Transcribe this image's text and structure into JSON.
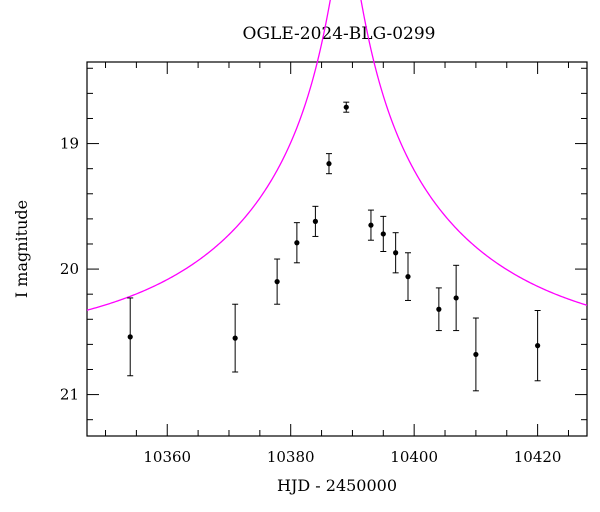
{
  "chart_data": {
    "type": "scatter",
    "title": "OGLE-2024-BLG-0299",
    "xlabel": "HJD - 2450000",
    "ylabel": "I magnitude",
    "xlim": [
      10347,
      10428
    ],
    "ylim": [
      21.33,
      18.35
    ],
    "y_inverted": true,
    "x_ticks": [
      10360,
      10380,
      10400,
      10420
    ],
    "y_ticks": [
      19,
      20,
      21
    ],
    "x_tick_labels": [
      "10360",
      "10380",
      "10400",
      "10420"
    ],
    "y_tick_labels": [
      "19",
      "20",
      "21"
    ],
    "grid": false,
    "legend": "none",
    "colors": {
      "model": "#ff00ff",
      "points": "#000000"
    },
    "series": [
      {
        "kind": "points_with_errorbars",
        "points": [
          {
            "x": 10354.0,
            "y": 20.54,
            "err": 0.31
          },
          {
            "x": 10371.0,
            "y": 20.55,
            "err": 0.27
          },
          {
            "x": 10377.8,
            "y": 20.1,
            "err": 0.18
          },
          {
            "x": 10381.0,
            "y": 19.79,
            "err": 0.16
          },
          {
            "x": 10384.0,
            "y": 19.62,
            "err": 0.12
          },
          {
            "x": 10386.2,
            "y": 19.16,
            "err": 0.08
          },
          {
            "x": 10389.0,
            "y": 18.71,
            "err": 0.04
          },
          {
            "x": 10393.0,
            "y": 19.65,
            "err": 0.12
          },
          {
            "x": 10395.0,
            "y": 19.72,
            "err": 0.14
          },
          {
            "x": 10397.0,
            "y": 19.87,
            "err": 0.16
          },
          {
            "x": 10399.0,
            "y": 20.06,
            "err": 0.19
          },
          {
            "x": 10404.0,
            "y": 20.32,
            "err": 0.17
          },
          {
            "x": 10406.8,
            "y": 20.23,
            "err": 0.26
          },
          {
            "x": 10410.0,
            "y": 20.68,
            "err": 0.29
          },
          {
            "x": 10420.0,
            "y": 20.61,
            "err": 0.28
          }
        ]
      },
      {
        "kind": "model_curve",
        "model": "pspl",
        "t0": 10388.9,
        "tE": 40,
        "u0": 0.048,
        "baseline": 20.62
      }
    ]
  }
}
